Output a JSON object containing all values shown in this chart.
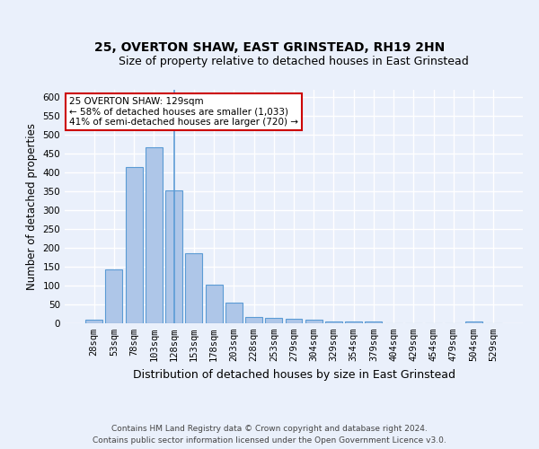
{
  "title1": "25, OVERTON SHAW, EAST GRINSTEAD, RH19 2HN",
  "title2": "Size of property relative to detached houses in East Grinstead",
  "xlabel": "Distribution of detached houses by size in East Grinstead",
  "ylabel": "Number of detached properties",
  "bar_labels": [
    "28sqm",
    "53sqm",
    "78sqm",
    "103sqm",
    "128sqm",
    "153sqm",
    "178sqm",
    "203sqm",
    "228sqm",
    "253sqm",
    "279sqm",
    "304sqm",
    "329sqm",
    "354sqm",
    "379sqm",
    "404sqm",
    "429sqm",
    "454sqm",
    "479sqm",
    "504sqm",
    "529sqm"
  ],
  "bar_values": [
    10,
    143,
    416,
    468,
    354,
    185,
    103,
    54,
    16,
    15,
    12,
    10,
    5,
    5,
    5,
    0,
    0,
    0,
    0,
    5,
    0
  ],
  "bar_color": "#aec6e8",
  "bar_edge_color": "#5b9bd5",
  "marker_bar_index": 4,
  "annotation_line1": "25 OVERTON SHAW: 129sqm",
  "annotation_line2": "← 58% of detached houses are smaller (1,033)",
  "annotation_line3": "41% of semi-detached houses are larger (720) →",
  "annotation_box_color": "#ffffff",
  "annotation_box_edge_color": "#cc0000",
  "ylim": [
    0,
    620
  ],
  "yticks": [
    0,
    50,
    100,
    150,
    200,
    250,
    300,
    350,
    400,
    450,
    500,
    550,
    600
  ],
  "footer_line1": "Contains HM Land Registry data © Crown copyright and database right 2024.",
  "footer_line2": "Contains public sector information licensed under the Open Government Licence v3.0.",
  "bg_color": "#eaf0fb",
  "plot_bg_color": "#eaf0fb",
  "grid_color": "#ffffff",
  "title1_fontsize": 10,
  "title2_fontsize": 9,
  "xlabel_fontsize": 9,
  "ylabel_fontsize": 8.5,
  "tick_fontsize": 7.5,
  "footer_fontsize": 6.5
}
